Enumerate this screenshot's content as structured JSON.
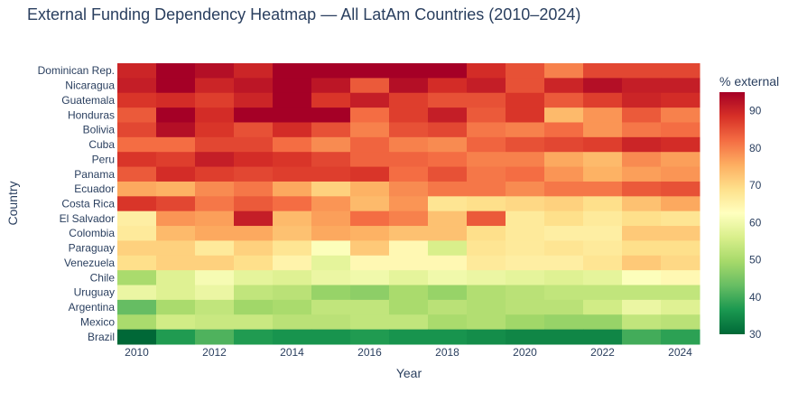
{
  "chart_data": {
    "type": "heatmap",
    "title": "External Funding Dependency Heatmap — All LatAm Countries (2010–2024)",
    "xlabel": "Year",
    "ylabel": "Country",
    "colorbar_title": "% external",
    "colorscale": "RdYlGn (reversed)",
    "colorscale_stops": [
      "#006837",
      "#1a9850",
      "#66bd63",
      "#a6d96a",
      "#d9ef8b",
      "#ffffbf",
      "#fee08b",
      "#fdae61",
      "#f46d43",
      "#d73027",
      "#a50026"
    ],
    "zmin": 30,
    "zmax": 95,
    "colorbar_ticks": [
      30,
      40,
      50,
      60,
      70,
      80,
      90
    ],
    "x": [
      2010,
      2011,
      2012,
      2013,
      2014,
      2015,
      2016,
      2017,
      2018,
      2019,
      2020,
      2021,
      2022,
      2023,
      2024
    ],
    "x_ticks": [
      "2010",
      "2012",
      "2014",
      "2016",
      "2018",
      "2020",
      "2022",
      "2024"
    ],
    "y": [
      "Dominican Rep.",
      "Nicaragua",
      "Guatemala",
      "Honduras",
      "Bolivia",
      "Cuba",
      "Peru",
      "Panama",
      "Ecuador",
      "Costa Rica",
      "El Salvador",
      "Colombia",
      "Paraguay",
      "Venezuela",
      "Chile",
      "Uruguay",
      "Argentina",
      "Mexico",
      "Brazil"
    ],
    "z": [
      [
        90,
        95,
        93,
        90,
        95,
        95,
        95,
        95,
        95,
        89,
        85,
        80,
        86,
        86,
        86
      ],
      [
        91,
        95,
        90,
        92,
        95,
        92,
        84,
        93,
        89,
        91,
        85,
        90,
        93,
        91,
        91
      ],
      [
        88,
        89,
        87,
        90,
        95,
        88,
        91,
        87,
        85,
        85,
        88,
        84,
        87,
        90,
        89
      ],
      [
        84,
        95,
        89,
        95,
        95,
        95,
        82,
        87,
        91,
        84,
        88,
        74,
        78,
        84,
        80
      ],
      [
        86,
        93,
        88,
        85,
        89,
        85,
        80,
        85,
        86,
        81,
        80,
        82,
        78,
        81,
        82
      ],
      [
        82,
        82,
        86,
        86,
        82,
        79,
        83,
        80,
        79,
        83,
        85,
        86,
        87,
        90,
        89
      ],
      [
        88,
        87,
        91,
        89,
        88,
        86,
        83,
        83,
        82,
        80,
        80,
        76,
        74,
        79,
        77
      ],
      [
        84,
        89,
        87,
        86,
        87,
        87,
        88,
        82,
        85,
        81,
        82,
        78,
        75,
        77,
        78
      ],
      [
        76,
        75,
        79,
        81,
        76,
        71,
        75,
        79,
        81,
        81,
        79,
        81,
        81,
        84,
        85
      ],
      [
        88,
        86,
        81,
        84,
        82,
        78,
        74,
        78,
        68,
        69,
        70,
        71,
        69,
        73,
        76
      ],
      [
        66,
        78,
        77,
        91,
        74,
        77,
        82,
        80,
        73,
        84,
        67,
        69,
        67,
        69,
        68
      ],
      [
        67,
        74,
        76,
        76,
        73,
        76,
        75,
        73,
        73,
        69,
        67,
        66,
        66,
        72,
        72
      ],
      [
        71,
        71,
        67,
        71,
        68,
        62,
        72,
        64,
        56,
        68,
        67,
        68,
        67,
        69,
        69
      ],
      [
        69,
        71,
        71,
        69,
        65,
        58,
        64,
        64,
        64,
        67,
        66,
        66,
        68,
        72,
        70
      ],
      [
        50,
        57,
        61,
        58,
        57,
        59,
        60,
        58,
        60,
        59,
        58,
        57,
        58,
        62,
        64
      ],
      [
        59,
        57,
        59,
        53,
        52,
        48,
        47,
        50,
        48,
        51,
        52,
        53,
        53,
        53,
        53
      ],
      [
        43,
        50,
        53,
        49,
        50,
        53,
        53,
        50,
        52,
        51,
        52,
        52,
        55,
        59,
        57
      ],
      [
        50,
        55,
        54,
        54,
        52,
        52,
        53,
        53,
        50,
        51,
        49,
        48,
        48,
        53,
        52
      ],
      [
        30,
        37,
        41,
        37,
        36,
        36,
        37,
        36,
        36,
        35,
        34,
        34,
        34,
        40,
        38
      ]
    ]
  }
}
